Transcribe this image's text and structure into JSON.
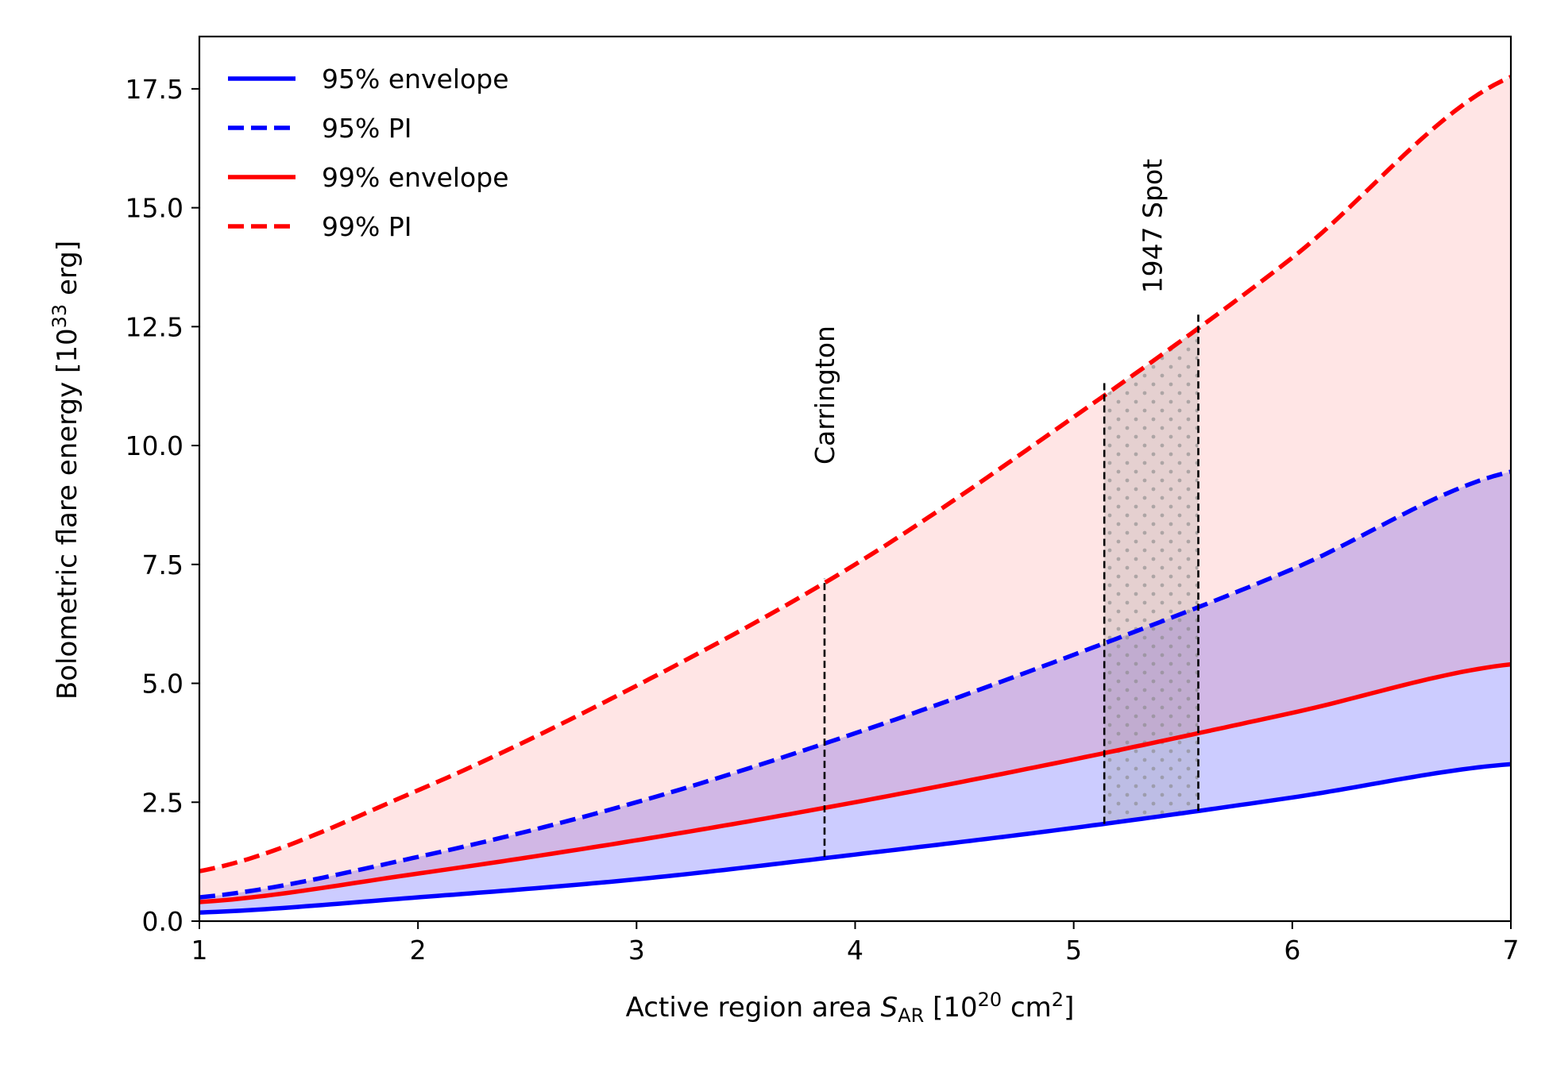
{
  "chart_data": {
    "type": "line",
    "title": "",
    "xlabel": {
      "prefix": "Active region area ",
      "symbol": "S",
      "symbol_sub": "AR",
      "units_open": " [10",
      "units_exp": "20",
      "units_mid": " cm",
      "units_exp2": "2",
      "units_close": "]"
    },
    "ylabel": {
      "prefix": "Bolometric flare energy [10",
      "exp": "33",
      "suffix": " erg]"
    },
    "xlim": [
      1,
      7
    ],
    "ylim": [
      0,
      18.6
    ],
    "xticks": [
      1,
      2,
      3,
      4,
      5,
      6,
      7
    ],
    "xtick_labels": [
      "1",
      "2",
      "3",
      "4",
      "5",
      "6",
      "7"
    ],
    "yticks": [
      0,
      2.5,
      5,
      7.5,
      10,
      12.5,
      15,
      17.5
    ],
    "ytick_labels": [
      "0.0",
      "2.5",
      "5.0",
      "7.5",
      "10.0",
      "12.5",
      "15.0",
      "17.5"
    ],
    "x": [
      1,
      2,
      3,
      4,
      5,
      6,
      7
    ],
    "series": [
      {
        "name": "95% envelope",
        "key": "env95",
        "color": "#0000ff",
        "dash": "solid",
        "values": [
          0.18,
          0.5,
          0.88,
          1.4,
          1.96,
          2.6,
          3.3
        ]
      },
      {
        "name": "95% PI",
        "key": "pi95",
        "color": "#0000ff",
        "dash": "dashed",
        "values": [
          0.5,
          1.35,
          2.5,
          3.95,
          5.6,
          7.4,
          9.45
        ]
      },
      {
        "name": "99% envelope",
        "key": "env99",
        "color": "#ff0000",
        "dash": "solid",
        "values": [
          0.4,
          1.0,
          1.7,
          2.5,
          3.4,
          4.38,
          5.4
        ]
      },
      {
        "name": "99% PI",
        "key": "pi99",
        "color": "#ff0000",
        "dash": "dashed",
        "values": [
          1.05,
          2.75,
          4.95,
          7.5,
          10.6,
          13.95,
          17.75
        ]
      }
    ],
    "fills": [
      {
        "between": [
          "env95",
          "pi95"
        ],
        "color": "#0000ff",
        "opacity": 0.2
      },
      {
        "between": [
          "env99",
          "pi99"
        ],
        "color": "#ff0000",
        "opacity": 0.1
      }
    ],
    "annotations": [
      {
        "label": "Carrington",
        "x": 3.86,
        "y_from": 1.35,
        "y_to": 7.2,
        "text_y": 9.6
      },
      {
        "label": "1947 Spot",
        "x_range": [
          5.14,
          5.57
        ],
        "text_x": 5.36,
        "text_y": 13.2
      }
    ],
    "legend_position": "top-left",
    "grid": false
  }
}
